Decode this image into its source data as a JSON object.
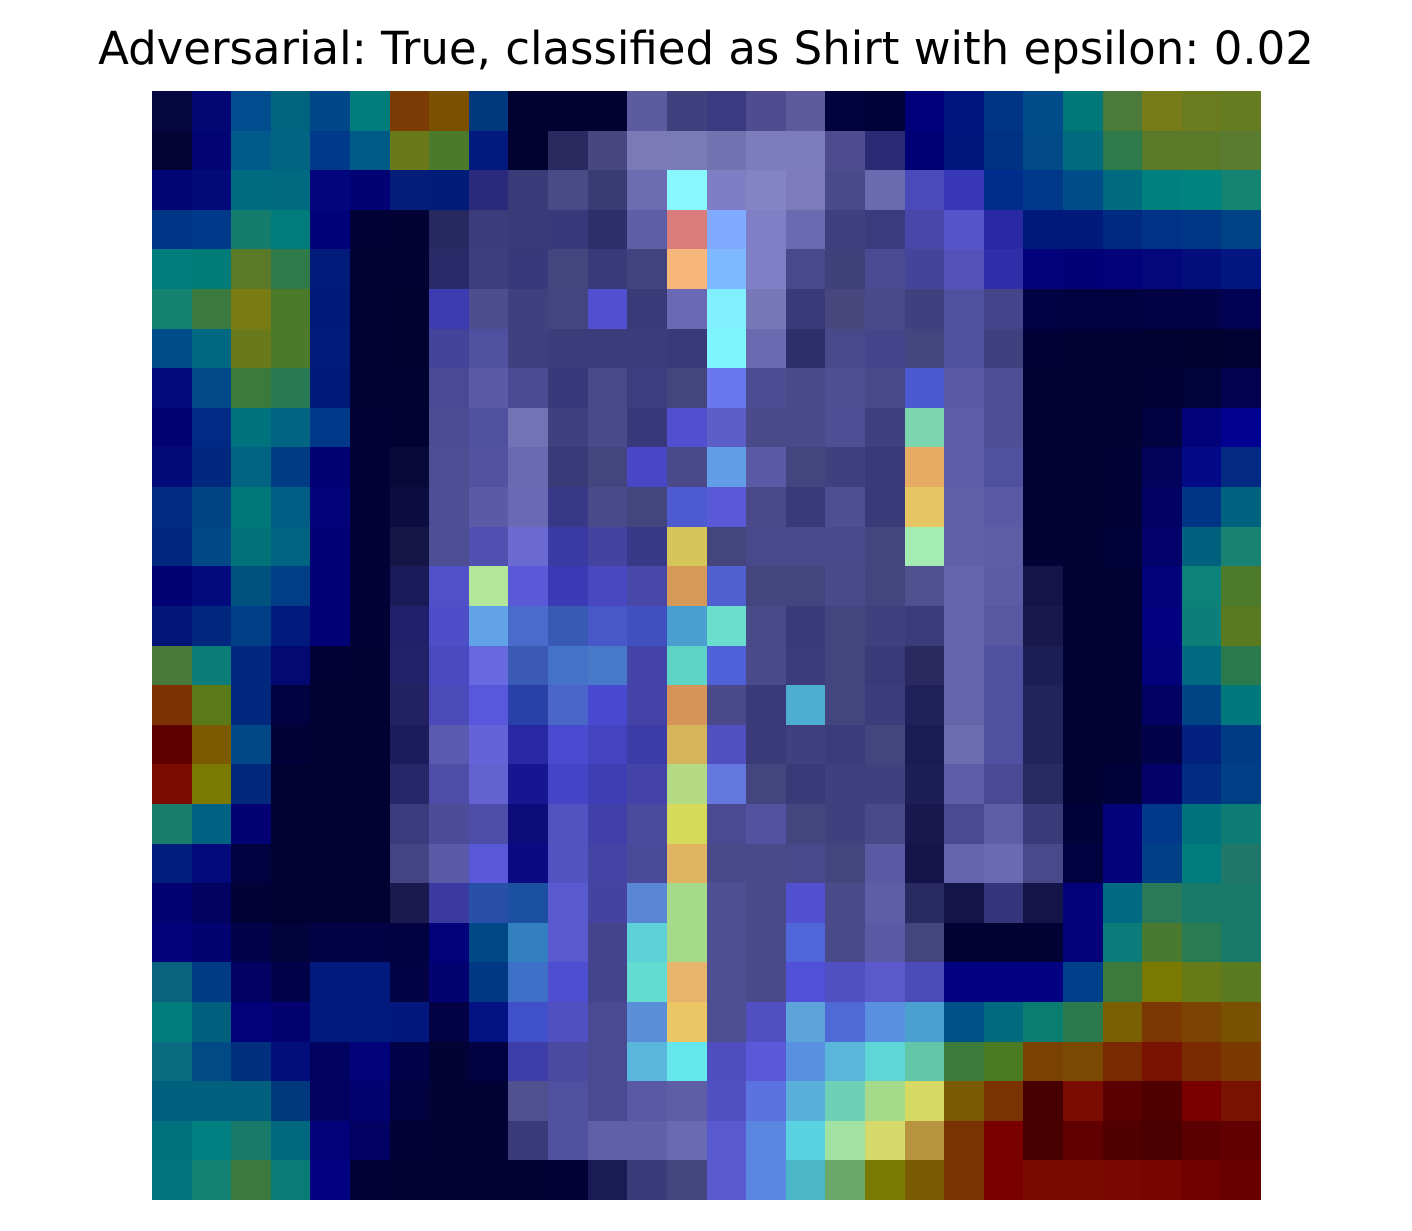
{
  "figure": {
    "title": "Adversarial: True, classified as Shirt with epsilon: 0.02"
  },
  "heatmap": {
    "grid_size": 28,
    "rows": [
      [
        "#05063f",
        "#020774",
        "#004c8e",
        "#00647f",
        "#00478a",
        "#007c7c",
        "#7b3b05",
        "#7c5003",
        "#00387e",
        "#020230",
        "#020231",
        "#020230",
        "#5d5ba0",
        "#40407f",
        "#3a3a80",
        "#4f4d90",
        "#5d5b9c",
        "#02023f",
        "#01013a",
        "#00007a",
        "#00147e",
        "#003484",
        "#004c8a",
        "#007878",
        "#4b7a3a",
        "#787c18",
        "#6b7c1e",
        "#657c21"
      ],
      [
        "#030336",
        "#020375",
        "#005a8a",
        "#006482",
        "#00398a",
        "#005a86",
        "#6a7a1a",
        "#4a7a2a",
        "#021a7e",
        "#020230",
        "#2a2a60",
        "#48467f",
        "#7b7ab6",
        "#7a7ab7",
        "#7272b0",
        "#7e7dbb",
        "#7e7dbb",
        "#4e4b8e",
        "#2a2a75",
        "#000075",
        "#00167d",
        "#003284",
        "#004a87",
        "#006a7e",
        "#2e7a48",
        "#5a7a2a",
        "#5a7a2a",
        "#5a7c30"
      ],
      [
        "#020675",
        "#020a7a",
        "#006c82",
        "#006a80",
        "#02067c",
        "#020274",
        "#021e7a",
        "#021c7a",
        "#2a2a7c",
        "#3a3a78",
        "#4a4a86",
        "#3a3a74",
        "#6d6cb0",
        "#88f8ff",
        "#7e7ec4",
        "#8484c4",
        "#7d7bba",
        "#4a4a88",
        "#6a6aae",
        "#4a4aba",
        "#3838b8",
        "#002c8c",
        "#00388a",
        "#004c8a",
        "#006a80",
        "#00807e",
        "#008480",
        "#138472"
      ],
      [
        "#003486",
        "#00388a",
        "#137c6c",
        "#007c7a",
        "#00027a",
        "#020238",
        "#020234",
        "#282860",
        "#3c3c7c",
        "#3a3a78",
        "#38387a",
        "#2e2e6a",
        "#5e5ea4",
        "#d87c7c",
        "#80aaff",
        "#7f7fc6",
        "#6a6ab0",
        "#40407f",
        "#3a3a7c",
        "#4848a8",
        "#5555cc",
        "#2828a2",
        "#00187a",
        "#001a7c",
        "#002a82",
        "#003288",
        "#003686",
        "#004286"
      ],
      [
        "#007c7a",
        "#007c78",
        "#5a7a2a",
        "#2e7a48",
        "#021a7a",
        "#020234",
        "#020232",
        "#2a2a68",
        "#3e3e7e",
        "#38387a",
        "#44447f",
        "#3a3a7a",
        "#42427f",
        "#f7b67a",
        "#7eb8ff",
        "#7f7fc8",
        "#48488a",
        "#40407a",
        "#4a4a92",
        "#44449a",
        "#5252b8",
        "#2e2ea8",
        "#02027a",
        "#020278",
        "#02027a",
        "#02087c",
        "#020e7c",
        "#021682"
      ],
      [
        "#138270",
        "#3a7a3e",
        "#787c12",
        "#4a7a2a",
        "#001a7a",
        "#020232",
        "#020230",
        "#3c3cb0",
        "#4e4e8e",
        "#40407f",
        "#444480",
        "#5050d0",
        "#3a3a78",
        "#6a6ab4",
        "#80f0ff",
        "#7878b8",
        "#3a3a78",
        "#48487f",
        "#4a4a8a",
        "#40407f",
        "#5050a0",
        "#44448a",
        "#020245",
        "#020240",
        "#020240",
        "#020244",
        "#020246",
        "#020254"
      ],
      [
        "#004c8a",
        "#006880",
        "#6a7a1a",
        "#4a7a2a",
        "#021a7a",
        "#020232",
        "#020230",
        "#44449a",
        "#5050a0",
        "#40407f",
        "#3c3c7a",
        "#3c3c7c",
        "#3c3c7c",
        "#3a3a7a",
        "#7ef4ff",
        "#6a6ab0",
        "#2e2e6a",
        "#48488a",
        "#44448a",
        "#44447f",
        "#5050a0",
        "#40407f",
        "#020238",
        "#020234",
        "#020234",
        "#020232",
        "#020230",
        "#020232"
      ],
      [
        "#020a7c",
        "#004a8a",
        "#3a7a3a",
        "#287a54",
        "#001a7a",
        "#020234",
        "#020232",
        "#4a4a94",
        "#5a5aa6",
        "#4a4a92",
        "#38387a",
        "#4a4a8a",
        "#3c3c7e",
        "#44447f",
        "#6a76ee",
        "#4c4c92",
        "#4a4a8a",
        "#4e4e92",
        "#4a4a88",
        "#4c5ad0",
        "#5a5aa6",
        "#4e4e94",
        "#020234",
        "#020234",
        "#020234",
        "#020236",
        "#02023c",
        "#020250"
      ],
      [
        "#020274",
        "#002a84",
        "#00727e",
        "#006482",
        "#00388a",
        "#020236",
        "#020232",
        "#4c4c92",
        "#5050a0",
        "#7272b4",
        "#40407f",
        "#4a4a8a",
        "#38387a",
        "#5050d0",
        "#5e5ec8",
        "#4a4a8a",
        "#4a4a8a",
        "#4e4e94",
        "#40407f",
        "#7cd6b0",
        "#5e5ea8",
        "#4e4e94",
        "#020234",
        "#020234",
        "#020234",
        "#020240",
        "#02027a",
        "#020290"
      ],
      [
        "#020a7a",
        "#00287e",
        "#006482",
        "#003c86",
        "#020274",
        "#020236",
        "#08083a",
        "#4e4e94",
        "#5252a0",
        "#6a6ab0",
        "#3a3a78",
        "#44447f",
        "#4848c6",
        "#4a4a8a",
        "#629ee6",
        "#5a5aa6",
        "#44447f",
        "#40407f",
        "#3a3a78",
        "#e6aa62",
        "#5e5ea8",
        "#5050a0",
        "#020234",
        "#020234",
        "#020236",
        "#02025a",
        "#020a88",
        "#022a82"
      ],
      [
        "#002c84",
        "#004486",
        "#00787a",
        "#005e86",
        "#02027a",
        "#020236",
        "#0c0c40",
        "#4e4e94",
        "#5a5aa6",
        "#6a6ab4",
        "#383888",
        "#4a4a8a",
        "#44447f",
        "#4e5ad0",
        "#5a5ad8",
        "#4a4a8a",
        "#3a3a78",
        "#4e4e92",
        "#3a3a78",
        "#e6c662",
        "#6060a8",
        "#5a5aa4",
        "#020234",
        "#020234",
        "#020238",
        "#020264",
        "#003484",
        "#00627e"
      ],
      [
        "#00287e",
        "#004886",
        "#007278",
        "#006480",
        "#020276",
        "#020236",
        "#141446",
        "#4e4e94",
        "#5050b0",
        "#6a6ad0",
        "#3a3aa4",
        "#4444a0",
        "#383888",
        "#d6c65a",
        "#44447f",
        "#48488a",
        "#48488a",
        "#48488a",
        "#44447f",
        "#a4ecb4",
        "#6060a8",
        "#5e5ea6",
        "#020234",
        "#020234",
        "#02023a",
        "#02026a",
        "#00607e",
        "#1a8272"
      ],
      [
        "#020274",
        "#020a7e",
        "#00527e",
        "#003e86",
        "#020276",
        "#020236",
        "#1a1a58",
        "#5050c8",
        "#b4e69a",
        "#5a5ad8",
        "#3a3ab4",
        "#4848c0",
        "#4848a8",
        "#d69a58",
        "#5060d0",
        "#44447f",
        "#44447f",
        "#4a4a8a",
        "#44447f",
        "#50508e",
        "#6464aa",
        "#5c5ca4",
        "#14144a",
        "#020234",
        "#020234",
        "#02027a",
        "#0c8278",
        "#4e7a2c"
      ],
      [
        "#021478",
        "#00287e",
        "#003e86",
        "#021a7e",
        "#020276",
        "#020236",
        "#20206a",
        "#4e4ec8",
        "#62a2e6",
        "#4a6acc",
        "#385ab4",
        "#4858c8",
        "#4050c0",
        "#4a9ed0",
        "#6adecc",
        "#4a4a8a",
        "#3a3a78",
        "#44447f",
        "#40407f",
        "#3c3c7c",
        "#6464aa",
        "#5858a0",
        "#18184c",
        "#020234",
        "#020234",
        "#020280",
        "#0c8078",
        "#5a7a22"
      ],
      [
        "#4a7a3a",
        "#0c7c78",
        "#00287e",
        "#020a72",
        "#020236",
        "#020234",
        "#222268",
        "#4a4ac0",
        "#6868e0",
        "#3a5ab4",
        "#4472c8",
        "#4878c8",
        "#4444a8",
        "#5ed4c6",
        "#5060d8",
        "#4a4a8a",
        "#3c3c7c",
        "#44447f",
        "#3a3a78",
        "#2a2a60",
        "#6464aa",
        "#5050a0",
        "#1e1e56",
        "#020234",
        "#020234",
        "#02027a",
        "#006a82",
        "#2a7a4e"
      ],
      [
        "#7c3202",
        "#5a7a1a",
        "#00287e",
        "#020240",
        "#020232",
        "#020232",
        "#222262",
        "#4a4ab8",
        "#5858dc",
        "#2840a8",
        "#4a66c8",
        "#4848d0",
        "#4444a8",
        "#d69458",
        "#4a4a8a",
        "#3a3a78",
        "#4eaed2",
        "#44447f",
        "#3c3c7c",
        "#20205a",
        "#6464aa",
        "#5050a0",
        "#22225c",
        "#020234",
        "#020234",
        "#020262",
        "#004486",
        "#00787c"
      ],
      [
        "#5e0000",
        "#7c5a02",
        "#004886",
        "#020238",
        "#020232",
        "#020232",
        "#1c1c5c",
        "#5a5ab0",
        "#6464d8",
        "#2828a2",
        "#4a4ad0",
        "#4444c0",
        "#3c3ca8",
        "#d6b45a",
        "#5050c0",
        "#3a3a78",
        "#40407f",
        "#3c3c7c",
        "#44447f",
        "#1a1a54",
        "#6c6cae",
        "#5050a0",
        "#22225c",
        "#020234",
        "#020234",
        "#020248",
        "#02207e",
        "#003c86"
      ],
      [
        "#7c0c02",
        "#7a7a02",
        "#02287e",
        "#020232",
        "#020232",
        "#020232",
        "#262668",
        "#4e4ea8",
        "#6262d0",
        "#161690",
        "#4444c6",
        "#3e3eb4",
        "#4444a8",
        "#b4da84",
        "#6478e0",
        "#44447f",
        "#3a3a78",
        "#40407f",
        "#40407f",
        "#1e1e56",
        "#5e5ea8",
        "#4a4a94",
        "#2a2a62",
        "#020234",
        "#02023a",
        "#020268",
        "#002c84",
        "#003e86"
      ],
      [
        "#1a7c6a",
        "#006282",
        "#020274",
        "#020232",
        "#020232",
        "#020232",
        "#3a3a7c",
        "#4c4c98",
        "#4e4ea8",
        "#0c0c7a",
        "#5252c0",
        "#4040a8",
        "#4a4a9e",
        "#d6da5a",
        "#4a4a92",
        "#5252a0",
        "#44447f",
        "#40407f",
        "#4a4a8a",
        "#18184e",
        "#4a4a92",
        "#5e5ea6",
        "#3a3a78",
        "#02023a",
        "#02027a",
        "#00388a",
        "#00727e",
        "#0c7c74"
      ],
      [
        "#021e7c",
        "#020a7c",
        "#020240",
        "#020232",
        "#020232",
        "#020232",
        "#444484",
        "#5a5aa8",
        "#5858d8",
        "#0a0a82",
        "#5252c0",
        "#4444a4",
        "#4a4a9a",
        "#e0b462",
        "#4a4a8a",
        "#4a4a8a",
        "#48488a",
        "#44447f",
        "#5a5aa4",
        "#14144a",
        "#6464aa",
        "#6a6ab0",
        "#48488a",
        "#020240",
        "#02027a",
        "#004086",
        "#007c7c",
        "#20786a"
      ],
      [
        "#020274",
        "#020260",
        "#020238",
        "#020232",
        "#020232",
        "#020232",
        "#1a1a50",
        "#3a3aa0",
        "#2850a8",
        "#1c50a0",
        "#5a5ad0",
        "#4444a0",
        "#5a86d6",
        "#a4da8a",
        "#4e4e92",
        "#4a4a8a",
        "#5050d0",
        "#4a4a8a",
        "#5e5ea6",
        "#2a2a62",
        "#141448",
        "#34347a",
        "#141448",
        "#02027a",
        "#006a82",
        "#2a7a5a",
        "#1a7a6a",
        "#1a7a6a"
      ],
      [
        "#02027a",
        "#020270",
        "#02024a",
        "#02023c",
        "#020244",
        "#020244",
        "#020240",
        "#02027a",
        "#004886",
        "#3280c0",
        "#5a5ad0",
        "#44448c",
        "#5ed0d8",
        "#a4da8a",
        "#4e4e92",
        "#4a4a8a",
        "#5066d8",
        "#4a4a8a",
        "#5a5aa4",
        "#44447f",
        "#020234",
        "#020234",
        "#020234",
        "#02027a",
        "#0a7c7a",
        "#4a7a30",
        "#2a7a52",
        "#1a7a6a"
      ],
      [
        "#0a627e",
        "#003c86",
        "#020262",
        "#020248",
        "#021a7e",
        "#021a7e",
        "#020244",
        "#020270",
        "#003884",
        "#3e70c8",
        "#4e4ed0",
        "#44448c",
        "#62dcd0",
        "#e6b46a",
        "#4e4e92",
        "#4a4a8a",
        "#5050d8",
        "#5050c0",
        "#5a5acc",
        "#4a4ab8",
        "#020280",
        "#020280",
        "#020282",
        "#00408a",
        "#3a7a3a",
        "#7a7a02",
        "#667a18",
        "#5a7a22"
      ],
      [
        "#007c7c",
        "#00607e",
        "#02027a",
        "#020270",
        "#021a7e",
        "#021a7e",
        "#02187e",
        "#020244",
        "#021282",
        "#4050c8",
        "#5050c0",
        "#4a4a92",
        "#5a8ed6",
        "#eac664",
        "#4e4e92",
        "#5050c0",
        "#5ca4da",
        "#4e6ad6",
        "#5a90e0",
        "#4aa0d0",
        "#00508a",
        "#006a80",
        "#0a7c70",
        "#2a7a4e",
        "#7a6002",
        "#7c3802",
        "#7c4402",
        "#7a5002"
      ],
      [
        "#0a6a80",
        "#004a86",
        "#00307e",
        "#020e7c",
        "#020260",
        "#02027a",
        "#020248",
        "#020234",
        "#020242",
        "#3e3eaa",
        "#4a4aa0",
        "#4a4a92",
        "#5ab6da",
        "#64e6ec",
        "#4e4ec0",
        "#5a5ad8",
        "#5a90e0",
        "#5ab6da",
        "#5ed6d6",
        "#62c6a6",
        "#3a7a3a",
        "#4a7a22",
        "#7a4202",
        "#7a4a02",
        "#7a2a02",
        "#7a1202",
        "#7a2a02",
        "#7a3a02"
      ],
      [
        "#00607e",
        "#00607e",
        "#00607e",
        "#00387e",
        "#020260",
        "#020270",
        "#020240",
        "#020234",
        "#020234",
        "#50508e",
        "#5050a0",
        "#4a4a92",
        "#5a5aa4",
        "#5e5ea6",
        "#5050c0",
        "#5c72e0",
        "#5ab0da",
        "#6ed0b6",
        "#a4da8a",
        "#d6da62",
        "#7a5a02",
        "#7a3202",
        "#460000",
        "#7a0c02",
        "#5a0000",
        "#500000",
        "#7a0000",
        "#7a1202"
      ],
      [
        "#00727e",
        "#008080",
        "#1a7a6a",
        "#00687e",
        "#02027a",
        "#020262",
        "#020236",
        "#020234",
        "#020234",
        "#3a3a78",
        "#5050a0",
        "#6060a8",
        "#6060a8",
        "#6a6ab0",
        "#5a5ad0",
        "#5a88e0",
        "#5ad2e2",
        "#a2e2a2",
        "#d6da6a",
        "#b89440",
        "#7a3202",
        "#7a0000",
        "#460000",
        "#600000",
        "#500000",
        "#4a0000",
        "#5a0000",
        "#600000"
      ],
      [
        "#00747e",
        "#138272",
        "#3a7a3e",
        "#0a7c78",
        "#020282",
        "#020236",
        "#020234",
        "#020234",
        "#020234",
        "#020234",
        "#020236",
        "#1a1a54",
        "#3a3a78",
        "#44447f",
        "#5a5ad0",
        "#5a88e0",
        "#4ab6c8",
        "#6aa86a",
        "#7a7a02",
        "#7a5a02",
        "#7a3202",
        "#7a0000",
        "#7a0a00",
        "#7a0a00",
        "#7a0800",
        "#7a0400",
        "#700000",
        "#680000"
      ]
    ]
  }
}
